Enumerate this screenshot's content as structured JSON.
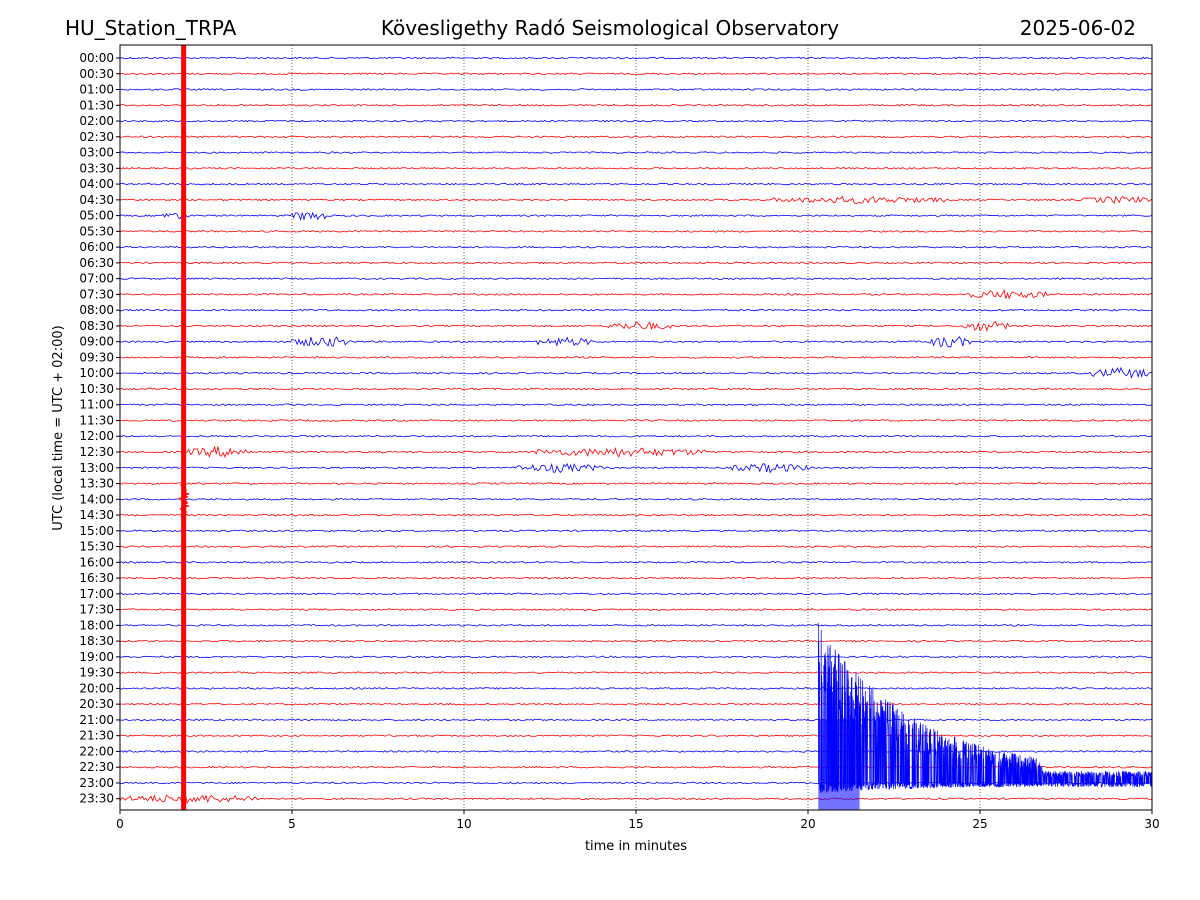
{
  "header": {
    "station": "HU_Station_TRPA",
    "observatory": "Kövesligethy Radó Seismological Observatory",
    "date": "2025-06-02"
  },
  "chart_data": {
    "type": "line",
    "title": "Kövesligethy Radó Seismological Observatory",
    "xlabel": "time in minutes",
    "ylabel": "UTC (local time = UTC + 02:00)",
    "xlim": [
      0,
      30
    ],
    "xticks": [
      "0",
      "5",
      "10",
      "15",
      "20",
      "25",
      "30"
    ],
    "grid": "vertical dotted",
    "row_colors": [
      "#0000ff",
      "#ff0000"
    ],
    "rows": [
      "00:00",
      "00:30",
      "01:00",
      "01:30",
      "02:00",
      "02:30",
      "03:00",
      "03:30",
      "04:00",
      "04:30",
      "05:00",
      "05:30",
      "06:00",
      "06:30",
      "07:00",
      "07:30",
      "08:00",
      "08:30",
      "09:00",
      "09:30",
      "10:00",
      "10:30",
      "11:00",
      "11:30",
      "12:00",
      "12:30",
      "13:00",
      "13:30",
      "14:00",
      "14:30",
      "15:00",
      "15:30",
      "16:00",
      "16:30",
      "17:00",
      "17:30",
      "18:00",
      "18:30",
      "19:00",
      "19:30",
      "20:00",
      "20:30",
      "21:00",
      "21:30",
      "22:00",
      "22:30",
      "23:00",
      "23:30"
    ],
    "events": [
      {
        "row": "05:00",
        "start_min": 1.2,
        "end_min": 2.0,
        "amplitude": 3
      },
      {
        "row": "05:00",
        "start_min": 5.0,
        "end_min": 6.0,
        "amplitude": 5
      },
      {
        "row": "04:30",
        "start_min": 19.0,
        "end_min": 24.0,
        "amplitude": 3
      },
      {
        "row": "04:30",
        "start_min": 28.0,
        "end_min": 30.0,
        "amplitude": 3
      },
      {
        "row": "07:30",
        "start_min": 24.5,
        "end_min": 27.0,
        "amplitude": 4
      },
      {
        "row": "08:30",
        "start_min": 14.2,
        "end_min": 16.0,
        "amplitude": 4
      },
      {
        "row": "08:30",
        "start_min": 24.5,
        "end_min": 25.8,
        "amplitude": 5
      },
      {
        "row": "09:00",
        "start_min": 5.0,
        "end_min": 6.8,
        "amplitude": 5
      },
      {
        "row": "09:00",
        "start_min": 12.0,
        "end_min": 13.8,
        "amplitude": 4
      },
      {
        "row": "09:00",
        "start_min": 23.5,
        "end_min": 24.7,
        "amplitude": 6
      },
      {
        "row": "10:00",
        "start_min": 28.2,
        "end_min": 30.0,
        "amplitude": 5
      },
      {
        "row": "12:30",
        "start_min": 2.0,
        "end_min": 3.8,
        "amplitude": 5
      },
      {
        "row": "12:30",
        "start_min": 12.0,
        "end_min": 17.0,
        "amplitude": 4
      },
      {
        "row": "13:00",
        "start_min": 11.5,
        "end_min": 14.0,
        "amplitude": 4
      },
      {
        "row": "13:00",
        "start_min": 17.8,
        "end_min": 20.0,
        "amplitude": 4
      },
      {
        "row": "23:30",
        "start_min": 0.0,
        "end_min": 4.0,
        "amplitude": 4
      }
    ],
    "large_events": [
      {
        "type": "spike",
        "x_min": 1.85,
        "from_row": "00:00",
        "to_row": "23:30",
        "color": "#ff0000"
      },
      {
        "type": "burst",
        "start_min": 20.3,
        "end_min": 30.0,
        "from_row": "18:00",
        "to_row": "23:30",
        "color": "#0000ff"
      }
    ]
  }
}
